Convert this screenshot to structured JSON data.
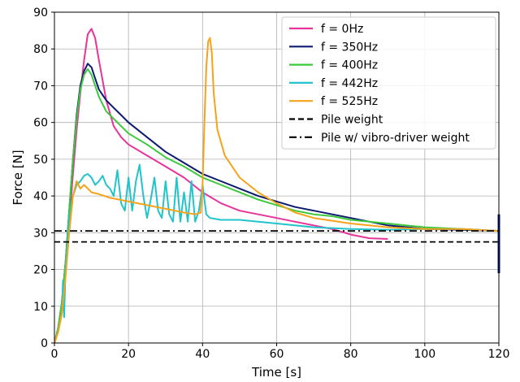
{
  "chart_data": {
    "type": "line",
    "xlabel": "Time [s]",
    "ylabel": "Force [N]",
    "xlim": [
      0,
      120
    ],
    "ylim": [
      0,
      90
    ],
    "xticks": [
      0,
      20,
      40,
      60,
      80,
      100,
      120
    ],
    "yticks": [
      0,
      10,
      20,
      30,
      40,
      50,
      60,
      70,
      80,
      90
    ],
    "grid": true,
    "legend_position": "top-right",
    "series": [
      {
        "name": "f = 0Hz",
        "color": "#e8349a",
        "x": [
          0,
          1,
          2,
          3,
          4,
          5,
          6,
          7,
          8,
          9,
          10,
          11,
          12,
          14,
          16,
          18,
          20,
          25,
          30,
          35,
          40,
          45,
          50,
          55,
          60,
          65,
          70,
          75,
          80,
          85,
          90
        ],
        "y": [
          0,
          4,
          10,
          20,
          33,
          46,
          58,
          68,
          77,
          84,
          85.5,
          83,
          77,
          66,
          59,
          56,
          54,
          51,
          48,
          45,
          41,
          38,
          36,
          35,
          34,
          33,
          32,
          31,
          29.5,
          28.5,
          28.3
        ]
      },
      {
        "name": "f = 350Hz",
        "color": "#0d1a6e",
        "x": [
          0,
          1,
          2,
          3,
          4,
          5,
          6,
          7,
          8,
          9,
          10,
          11,
          12,
          14,
          16,
          18,
          20,
          25,
          30,
          35,
          40,
          45,
          50,
          55,
          60,
          65,
          70,
          75,
          80,
          90,
          100,
          110,
          120
        ],
        "y": [
          0,
          4,
          11,
          22,
          36,
          50,
          62,
          70,
          74,
          76,
          75,
          72,
          69,
          66,
          64,
          62,
          60,
          56,
          52,
          49,
          46,
          44,
          42,
          40,
          38.5,
          37,
          36,
          35,
          34,
          32,
          31,
          30.8,
          30.5
        ]
      },
      {
        "name": "f = 400Hz",
        "color": "#3cc93c",
        "x": [
          0,
          1,
          2,
          3,
          4,
          5,
          6,
          7,
          8,
          9,
          10,
          11,
          12,
          14,
          16,
          18,
          20,
          25,
          30,
          35,
          40,
          45,
          50,
          55,
          60,
          65,
          70,
          75,
          80,
          90,
          100,
          110,
          120
        ],
        "y": [
          0,
          4,
          11,
          22,
          36,
          50,
          61,
          69,
          73,
          74.5,
          73,
          70,
          67,
          63,
          61,
          59,
          57,
          54,
          50.5,
          48,
          45,
          43,
          41,
          39,
          37.5,
          36,
          35,
          34.5,
          33.5,
          32.5,
          31.5,
          31,
          30.5
        ]
      },
      {
        "name": "f = 442Hz",
        "color": "#22c4cc",
        "x": [
          0,
          1,
          2,
          2.3,
          2.6,
          3,
          4,
          5,
          6,
          7,
          8,
          9,
          10,
          11,
          12,
          13,
          14,
          15,
          16,
          17,
          18,
          19,
          20,
          21,
          22,
          23,
          24,
          25,
          26,
          27,
          28,
          29,
          30,
          31,
          32,
          33,
          34,
          35,
          36,
          37,
          38,
          39,
          40,
          41,
          42,
          45,
          50,
          55,
          60,
          70,
          80,
          90,
          100,
          110,
          120
        ],
        "y": [
          0,
          3,
          8,
          17,
          7,
          20,
          34,
          40,
          43,
          44,
          45.5,
          46,
          45,
          43,
          44,
          45.5,
          43,
          42,
          40,
          47,
          38,
          36,
          45,
          36,
          44,
          48.5,
          40,
          34,
          39,
          45,
          36,
          34,
          44,
          35,
          33,
          45,
          33,
          41,
          33,
          44,
          33,
          36,
          43,
          35,
          34,
          33.5,
          33.5,
          33,
          32.5,
          31.5,
          31,
          30.8,
          31,
          31,
          30.5
        ]
      },
      {
        "name": "f = 525Hz",
        "color": "#f5a31a",
        "x": [
          0,
          1,
          2,
          3,
          4,
          5,
          6,
          7,
          8,
          10,
          12,
          15,
          20,
          25,
          30,
          35,
          38,
          39.5,
          40,
          40.5,
          41,
          41.5,
          42,
          42.5,
          43,
          44,
          46,
          50,
          55,
          60,
          65,
          70,
          80,
          90,
          100,
          110,
          120
        ],
        "y": [
          0,
          3,
          8,
          18,
          30,
          40,
          44,
          42,
          43,
          41,
          40.5,
          39.5,
          38.5,
          37.5,
          36.5,
          35.5,
          35,
          35.5,
          43,
          60,
          75,
          82,
          83,
          79,
          68,
          58,
          51,
          45,
          41,
          38,
          35.5,
          34,
          32.5,
          31.5,
          31,
          31,
          30.5
        ]
      },
      {
        "name": "Pile weight",
        "color": "#000000",
        "style": "dashed",
        "x": [
          0,
          120
        ],
        "y": [
          27.5,
          27.5
        ]
      },
      {
        "name": "Pile w/ vibro-driver weight",
        "color": "#000000",
        "style": "dashdot",
        "x": [
          0,
          120
        ],
        "y": [
          30.5,
          30.5
        ]
      }
    ],
    "end_spike": {
      "color": "#0d1a6e",
      "x": 120,
      "y_range": [
        19,
        35
      ]
    }
  }
}
